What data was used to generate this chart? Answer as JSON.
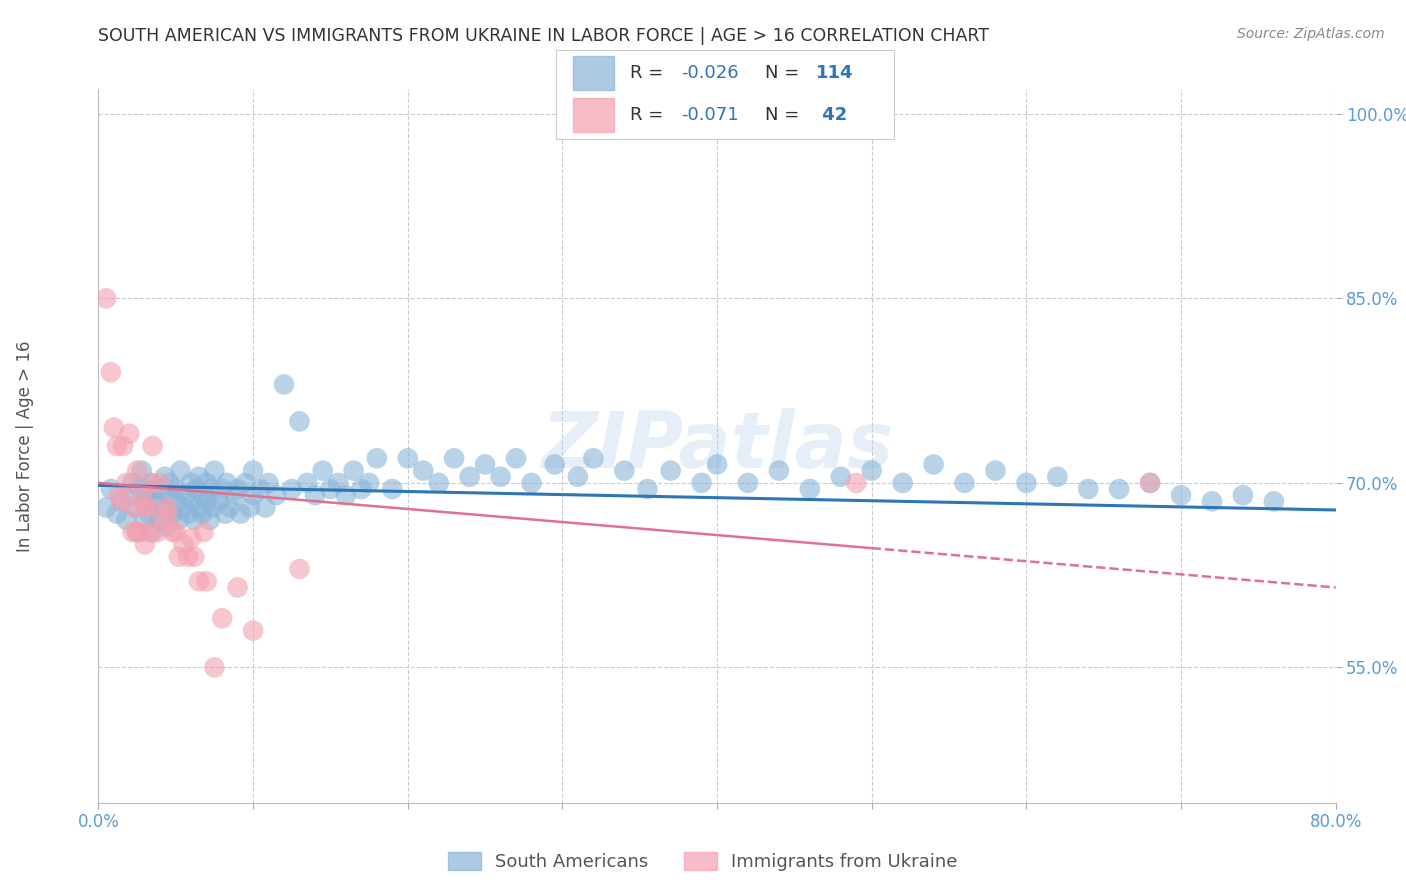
{
  "title": "SOUTH AMERICAN VS IMMIGRANTS FROM UKRAINE IN LABOR FORCE | AGE > 16 CORRELATION CHART",
  "source": "Source: ZipAtlas.com",
  "ylabel": "In Labor Force | Age > 16",
  "xlim": [
    0.0,
    0.8
  ],
  "ylim": [
    0.44,
    1.02
  ],
  "xticks": [
    0.0,
    0.1,
    0.2,
    0.3,
    0.4,
    0.5,
    0.6,
    0.7,
    0.8
  ],
  "xtick_labels": [
    "0.0%",
    "",
    "",
    "",
    "",
    "",
    "",
    "",
    "80.0%"
  ],
  "ytick_positions": [
    0.55,
    0.7,
    0.85,
    1.0
  ],
  "ytick_labels": [
    "55.0%",
    "70.0%",
    "85.0%",
    "100.0%"
  ],
  "series1_name": "South Americans",
  "series1_color": "#8ab4d8",
  "series2_name": "Immigrants from Ukraine",
  "series2_color": "#f4a0b0",
  "series1_R": "-0.026",
  "series1_N": "114",
  "series2_R": "-0.071",
  "series2_N": "42",
  "watermark": "ZIPatlas",
  "background_color": "#ffffff",
  "grid_color": "#cccccc",
  "title_color": "#333333",
  "tick_color": "#5b9bd5",
  "blue_line_color": "#2E75B6",
  "pink_line_color": "#E07090",
  "blue_scatter_x": [
    0.005,
    0.008,
    0.012,
    0.015,
    0.018,
    0.02,
    0.022,
    0.024,
    0.025,
    0.027,
    0.028,
    0.03,
    0.03,
    0.032,
    0.033,
    0.034,
    0.035,
    0.036,
    0.038,
    0.04,
    0.04,
    0.042,
    0.043,
    0.044,
    0.045,
    0.046,
    0.048,
    0.05,
    0.05,
    0.052,
    0.053,
    0.055,
    0.056,
    0.058,
    0.06,
    0.06,
    0.062,
    0.063,
    0.065,
    0.065,
    0.067,
    0.068,
    0.07,
    0.07,
    0.072,
    0.073,
    0.074,
    0.075,
    0.078,
    0.08,
    0.082,
    0.083,
    0.085,
    0.088,
    0.09,
    0.092,
    0.095,
    0.098,
    0.1,
    0.1,
    0.105,
    0.108,
    0.11,
    0.115,
    0.12,
    0.125,
    0.13,
    0.135,
    0.14,
    0.145,
    0.15,
    0.155,
    0.16,
    0.165,
    0.17,
    0.175,
    0.18,
    0.19,
    0.2,
    0.21,
    0.22,
    0.23,
    0.24,
    0.25,
    0.26,
    0.27,
    0.28,
    0.295,
    0.31,
    0.32,
    0.34,
    0.355,
    0.37,
    0.39,
    0.4,
    0.42,
    0.44,
    0.46,
    0.48,
    0.5,
    0.52,
    0.54,
    0.56,
    0.58,
    0.6,
    0.62,
    0.64,
    0.66,
    0.68,
    0.7,
    0.72,
    0.74,
    0.76
  ],
  "blue_scatter_y": [
    0.68,
    0.695,
    0.675,
    0.685,
    0.67,
    0.69,
    0.7,
    0.68,
    0.66,
    0.695,
    0.71,
    0.67,
    0.685,
    0.69,
    0.675,
    0.7,
    0.66,
    0.695,
    0.685,
    0.67,
    0.695,
    0.68,
    0.705,
    0.665,
    0.69,
    0.7,
    0.675,
    0.685,
    0.695,
    0.67,
    0.71,
    0.68,
    0.69,
    0.675,
    0.685,
    0.7,
    0.67,
    0.695,
    0.68,
    0.705,
    0.675,
    0.69,
    0.685,
    0.7,
    0.67,
    0.695,
    0.68,
    0.71,
    0.685,
    0.695,
    0.675,
    0.7,
    0.68,
    0.69,
    0.695,
    0.675,
    0.7,
    0.68,
    0.71,
    0.69,
    0.695,
    0.68,
    0.7,
    0.69,
    0.78,
    0.695,
    0.75,
    0.7,
    0.69,
    0.71,
    0.695,
    0.7,
    0.69,
    0.71,
    0.695,
    0.7,
    0.72,
    0.695,
    0.72,
    0.71,
    0.7,
    0.72,
    0.705,
    0.715,
    0.705,
    0.72,
    0.7,
    0.715,
    0.705,
    0.72,
    0.71,
    0.695,
    0.71,
    0.7,
    0.715,
    0.7,
    0.71,
    0.695,
    0.705,
    0.71,
    0.7,
    0.715,
    0.7,
    0.71,
    0.7,
    0.705,
    0.695,
    0.695,
    0.7,
    0.69,
    0.685,
    0.69,
    0.685
  ],
  "pink_scatter_x": [
    0.005,
    0.008,
    0.01,
    0.012,
    0.013,
    0.015,
    0.016,
    0.018,
    0.02,
    0.022,
    0.023,
    0.025,
    0.025,
    0.027,
    0.028,
    0.03,
    0.03,
    0.032,
    0.033,
    0.034,
    0.035,
    0.038,
    0.04,
    0.042,
    0.044,
    0.045,
    0.048,
    0.05,
    0.052,
    0.055,
    0.058,
    0.06,
    0.062,
    0.065,
    0.068,
    0.07,
    0.075,
    0.08,
    0.09,
    0.1,
    0.13,
    0.49,
    0.68
  ],
  "pink_scatter_y": [
    0.85,
    0.79,
    0.745,
    0.73,
    0.69,
    0.685,
    0.73,
    0.7,
    0.74,
    0.66,
    0.68,
    0.71,
    0.66,
    0.66,
    0.69,
    0.68,
    0.65,
    0.68,
    0.66,
    0.7,
    0.73,
    0.66,
    0.7,
    0.67,
    0.68,
    0.675,
    0.66,
    0.66,
    0.64,
    0.65,
    0.64,
    0.655,
    0.64,
    0.62,
    0.66,
    0.62,
    0.55,
    0.59,
    0.615,
    0.58,
    0.63,
    0.7,
    0.7
  ],
  "blue_line_x0": 0.0,
  "blue_line_x1": 0.8,
  "blue_line_y0": 0.698,
  "blue_line_y1": 0.678,
  "pink_line_solid_x0": 0.0,
  "pink_line_solid_x1": 0.5,
  "pink_line_solid_y0": 0.7,
  "pink_line_solid_y1": 0.647,
  "pink_line_dash_x0": 0.5,
  "pink_line_dash_x1": 0.8,
  "pink_line_dash_y0": 0.647,
  "pink_line_dash_y1": 0.615
}
